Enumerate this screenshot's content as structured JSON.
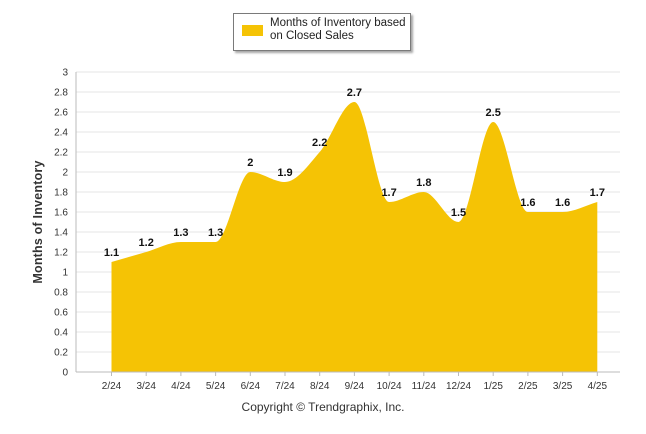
{
  "chart_data": {
    "type": "area",
    "categories": [
      "2/24",
      "3/24",
      "4/24",
      "5/24",
      "6/24",
      "7/24",
      "8/24",
      "9/24",
      "10/24",
      "11/24",
      "12/24",
      "1/25",
      "2/25",
      "3/25",
      "4/25"
    ],
    "series": [
      {
        "name": "Months of Inventory based on Closed Sales",
        "values": [
          1.1,
          1.2,
          1.3,
          1.3,
          2.0,
          1.9,
          2.2,
          2.7,
          1.7,
          1.8,
          1.5,
          2.5,
          1.6,
          1.6,
          1.7
        ],
        "labels": [
          "1.1",
          "1.2",
          "1.3",
          "1.3",
          "2",
          "1.9",
          "2.2",
          "2.7",
          "1.7",
          "1.8",
          "1.5",
          "2.5",
          "1.6",
          "1.6",
          "1.7"
        ]
      }
    ],
    "ylabel": "Months of Inventory",
    "xlabel": "",
    "ylim": [
      0,
      3
    ],
    "yticks": [
      "0",
      "0.2",
      "0.4",
      "0.6",
      "0.8",
      "1",
      "1.2",
      "1.4",
      "1.6",
      "1.8",
      "2",
      "2.2",
      "2.4",
      "2.6",
      "2.8",
      "3"
    ],
    "grid": true,
    "legend_position": "top-center"
  },
  "legend": {
    "label": "Months of Inventory based on Closed Sales"
  },
  "footer": {
    "copyright": "Copyright © Trendgraphix, Inc."
  },
  "colors": {
    "area_fill": "#F5C305",
    "grid": "#E6E6E6",
    "axis": "#BBBBBB"
  }
}
